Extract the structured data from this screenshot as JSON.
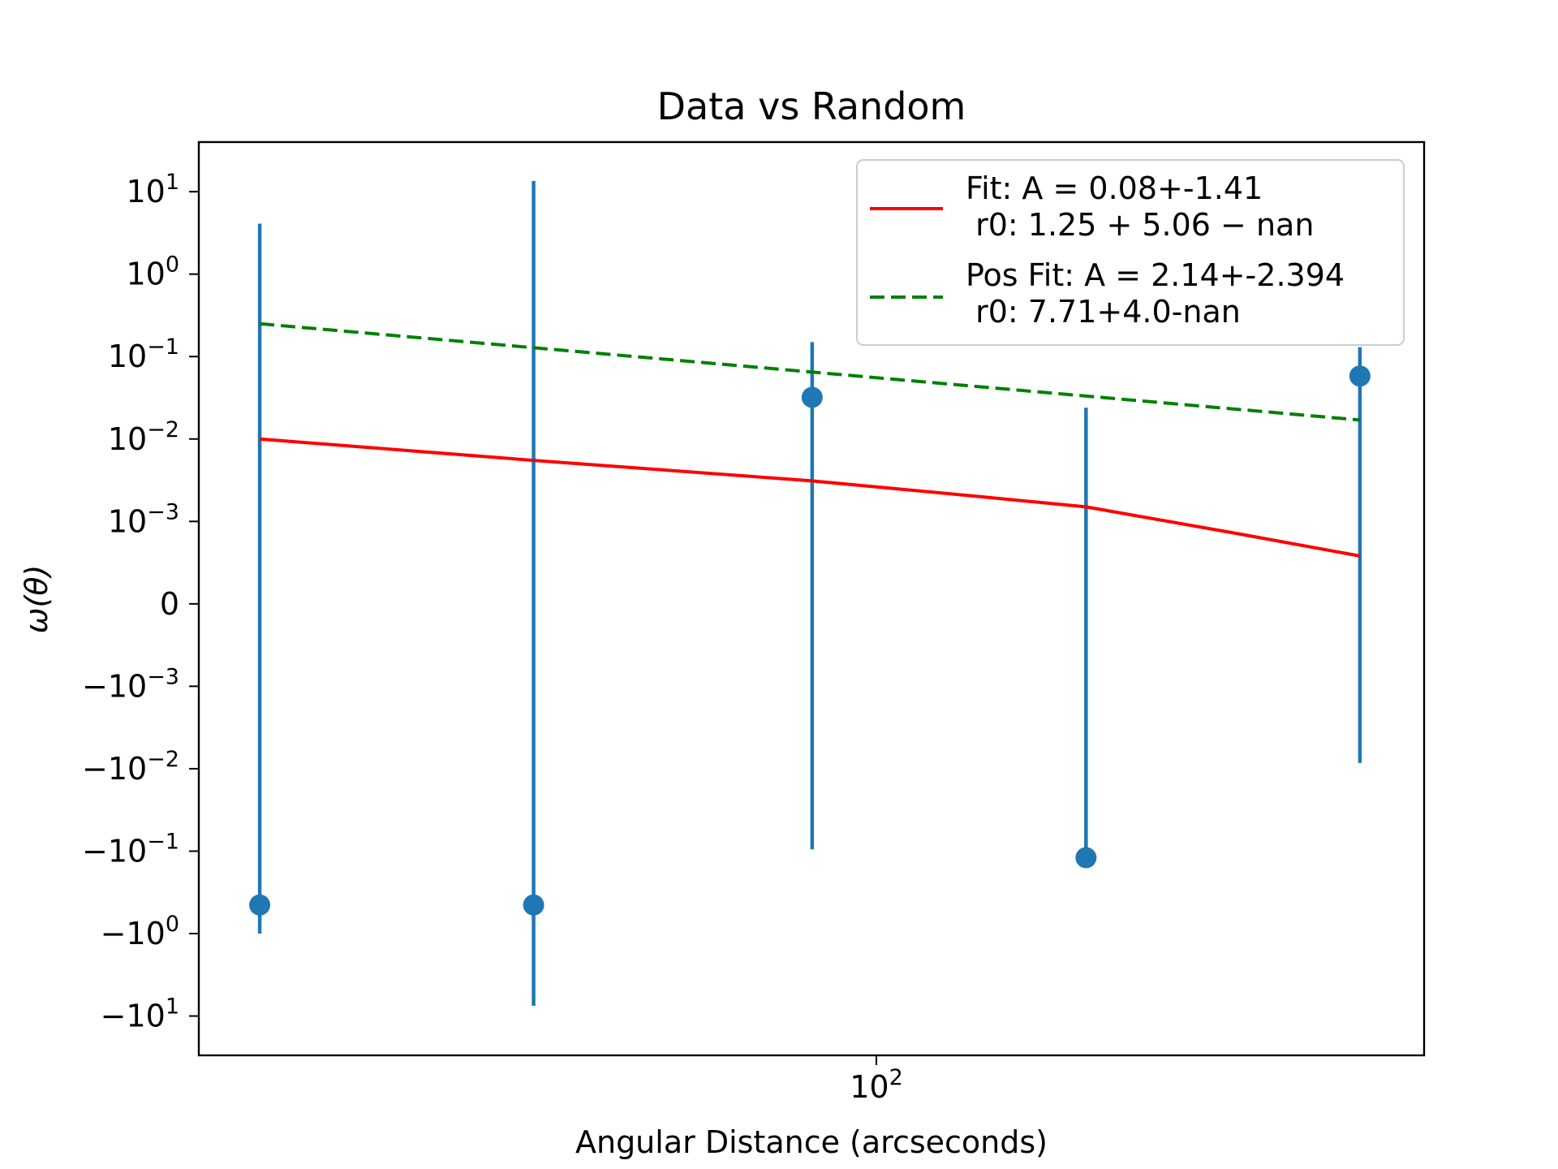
{
  "chart_data": {
    "type": "scatter",
    "title": "Data vs Random",
    "xlabel": "Angular Distance (arcseconds)",
    "ylabel": "ω(θ)",
    "xscale": "log",
    "yscale": "symlog",
    "symlog_linthresh": 0.001,
    "xlim": [
      18,
      400
    ],
    "ylim": [
      -30,
      40
    ],
    "grid": false,
    "legend_placement": "upper right",
    "x_ticks": [
      {
        "value": 100,
        "label_base": "10",
        "label_exp": "2"
      }
    ],
    "y_ticks": [
      {
        "value": 10,
        "label": "10",
        "exp": "1"
      },
      {
        "value": 1,
        "label": "10",
        "exp": "0"
      },
      {
        "value": 0.1,
        "label": "10",
        "exp": "−1"
      },
      {
        "value": 0.01,
        "label": "10",
        "exp": "−2"
      },
      {
        "value": 0.001,
        "label": "10",
        "exp": "−3"
      },
      {
        "value": 0,
        "label": "0",
        "exp": ""
      },
      {
        "value": -0.001,
        "label": "−10",
        "exp": "−3"
      },
      {
        "value": -0.01,
        "label": "−10",
        "exp": "−2"
      },
      {
        "value": -0.1,
        "label": "−10",
        "exp": "−1"
      },
      {
        "value": -1,
        "label": "−10",
        "exp": "0"
      },
      {
        "value": -10,
        "label": "−10",
        "exp": "1"
      }
    ],
    "points": {
      "color": "#1f77b4",
      "x": [
        21,
        42,
        85,
        170,
        340
      ],
      "y": [
        -0.45,
        -0.45,
        0.032,
        -0.12,
        0.058
      ],
      "err_low": [
        -1.0,
        -7.5,
        -0.095,
        -0.1,
        -0.0085
      ],
      "err_high": [
        4.1,
        13.5,
        0.15,
        0.024,
        0.13
      ]
    },
    "series": [
      {
        "name_line1": "Fit: A = 0.08+-1.41",
        "name_line2": " r0: 1.25 + 5.06 − nan",
        "color": "#ff0000",
        "style": "solid",
        "x": [
          21,
          42,
          85,
          130,
          170,
          250,
          340
        ],
        "y": [
          0.01,
          0.0055,
          0.0031,
          0.002,
          0.0015,
          0.00085,
          0.00058
        ]
      },
      {
        "name_line1": "Pos Fit: A = 2.14+-2.394",
        "name_line2": " r0: 7.71+4.0-nan",
        "color": "#008000",
        "style": "dashed",
        "x": [
          21,
          340
        ],
        "y": [
          0.25,
          0.017
        ]
      }
    ]
  }
}
